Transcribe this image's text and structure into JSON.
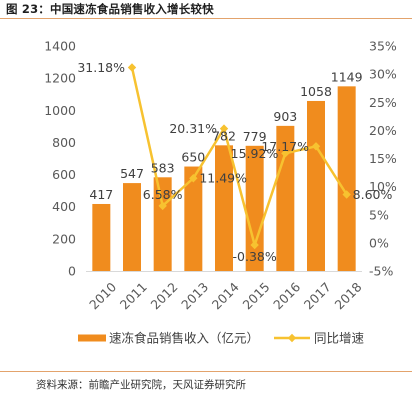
{
  "figure_title": "图 23：中国速冻食品销售收入增长较快",
  "source_note": "资料来源：前瞻产业研究院，天风证券研究所",
  "colors": {
    "bar": "#F08C1E",
    "line": "#F7C230",
    "rule": "#E3A36C",
    "axis_text": "#595959",
    "label_text": "#404040"
  },
  "chart_data": {
    "type": "bar",
    "categories": [
      "2010",
      "2011",
      "2012",
      "2013",
      "2014",
      "2015",
      "2016",
      "2017",
      "2018"
    ],
    "series": [
      {
        "name": "速冻食品销售收入（亿元）",
        "type": "bar",
        "axis": "left",
        "values": [
          417,
          547,
          583,
          650,
          782,
          779,
          903,
          1058,
          1149
        ],
        "labels": [
          "417",
          "547",
          "583",
          "650",
          "782",
          "779",
          "903",
          "1058",
          "1149"
        ]
      },
      {
        "name": "同比增速",
        "type": "line",
        "axis": "right",
        "values": [
          null,
          31.18,
          6.58,
          11.49,
          20.31,
          -0.38,
          15.92,
          17.17,
          8.6
        ],
        "labels": [
          null,
          "31.18%",
          "6.58%",
          "11.49%",
          "20.31%",
          "-0.38%",
          "15.92%",
          "17.17%",
          "8.60%"
        ]
      }
    ],
    "y_left": {
      "lim": [
        0,
        1400
      ],
      "ticks": [
        0,
        200,
        400,
        600,
        800,
        1000,
        1200,
        1400
      ],
      "tick_labels": [
        "0",
        "200",
        "400",
        "600",
        "800",
        "1000",
        "1200",
        "1400"
      ]
    },
    "y_right": {
      "lim": [
        -5,
        35
      ],
      "ticks": [
        -5,
        0,
        5,
        10,
        15,
        20,
        25,
        30,
        35
      ],
      "tick_labels": [
        "-5%",
        "0%",
        "5%",
        "10%",
        "15%",
        "20%",
        "25%",
        "30%",
        "35%"
      ]
    },
    "grid": false,
    "legend_position": "bottom"
  }
}
